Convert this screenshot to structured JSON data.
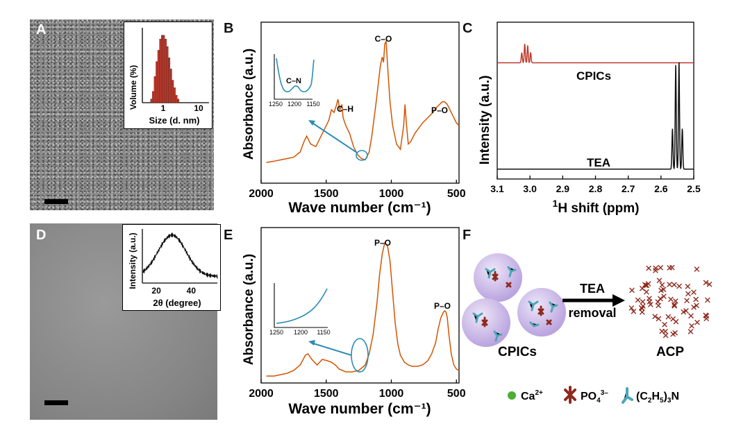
{
  "panel_labels": {
    "a": "A",
    "b": "B",
    "c": "C",
    "d": "D",
    "e": "E",
    "f": "F"
  },
  "inset_a": {
    "ylabel": "Volume (%)",
    "xlabel": "Size (d. nm)",
    "tick_1": "1",
    "tick_10": "10",
    "bars_log_start": 0.5,
    "bars_log_step_factor": 1.12,
    "bar_values": [
      1,
      3,
      7,
      11,
      14,
      17,
      18,
      18,
      17,
      15,
      12,
      9,
      6,
      4,
      2,
      1
    ],
    "ylim": [
      0,
      20
    ],
    "bar_color": "#c0392b"
  },
  "inset_d": {
    "ylabel": "Intensity (a.u.)",
    "xlabel": "2θ (degree)",
    "ticks": [
      "20",
      "40"
    ],
    "xlim": [
      12,
      55
    ],
    "peak_center": 29,
    "peak_width": 8
  },
  "chart_data": [
    {
      "type": "line",
      "panel": "B",
      "xlabel": "Wave number (cm⁻¹)",
      "ylabel": "Absorbance (a.u.)",
      "xlim": [
        2000,
        480
      ],
      "xticks": [
        "2000",
        "1500",
        "1000",
        "500"
      ],
      "xtick_values": [
        2000,
        1500,
        1000,
        500
      ],
      "color": "#d35400",
      "series": [
        {
          "name": "CPICs",
          "x": [
            1960,
            1900,
            1850,
            1800,
            1750,
            1700,
            1670,
            1650,
            1620,
            1580,
            1520,
            1480,
            1460,
            1440,
            1420,
            1410,
            1395,
            1380,
            1370,
            1350,
            1320,
            1290,
            1260,
            1230,
            1200,
            1170,
            1150,
            1120,
            1100,
            1085,
            1070,
            1060,
            1050,
            1040,
            1025,
            1010,
            990,
            960,
            930,
            905,
            895,
            885,
            870,
            850,
            820,
            790,
            760,
            720,
            680,
            650,
            630,
            610,
            590,
            570,
            550,
            530,
            500,
            480
          ],
          "y": [
            0.02,
            0.03,
            0.04,
            0.05,
            0.06,
            0.1,
            0.18,
            0.22,
            0.16,
            0.14,
            0.26,
            0.34,
            0.42,
            0.4,
            0.46,
            0.5,
            0.42,
            0.46,
            0.36,
            0.3,
            0.24,
            0.14,
            0.08,
            0.05,
            0.04,
            0.1,
            0.22,
            0.45,
            0.62,
            0.75,
            0.82,
            0.78,
            0.92,
            0.94,
            0.7,
            0.48,
            0.3,
            0.16,
            0.12,
            0.3,
            0.46,
            0.32,
            0.16,
            0.18,
            0.24,
            0.28,
            0.32,
            0.36,
            0.4,
            0.44,
            0.46,
            0.48,
            0.48,
            0.46,
            0.42,
            0.38,
            0.32,
            0.3
          ]
        }
      ],
      "annotations": [
        "C–O",
        "C–H",
        "P–O"
      ],
      "inset": {
        "label": "C–N",
        "ticks": [
          "1250",
          "1200",
          "1150"
        ]
      }
    },
    {
      "type": "line",
      "panel": "C",
      "xlabel": "H shift (ppm)",
      "xlabel_sup": "1",
      "ylabel": "Intensity (a.u.)",
      "xlim": [
        3.1,
        2.5
      ],
      "xticks": [
        "3.1",
        "3.0",
        "2.9",
        "2.8",
        "2.7",
        "2.6",
        "2.5"
      ],
      "xtick_values": [
        3.1,
        3.0,
        2.9,
        2.8,
        2.7,
        2.6,
        2.5
      ],
      "series": [
        {
          "name": "CPICs",
          "color": "#c0392b",
          "baseline": 0.75,
          "peaks": [
            [
              3.025,
              0.07
            ],
            [
              3.016,
              0.13
            ],
            [
              3.007,
              0.12
            ],
            [
              2.998,
              0.07
            ]
          ]
        },
        {
          "name": "TEA",
          "color": "#111111",
          "baseline": 0.02,
          "peaks": [
            [
              2.565,
              0.28
            ],
            [
              2.555,
              0.72
            ],
            [
              2.545,
              0.74
            ],
            [
              2.535,
              0.28
            ]
          ]
        }
      ]
    },
    {
      "type": "line",
      "panel": "E",
      "xlabel": "Wave number (cm⁻¹)",
      "ylabel": "Absorbance (a.u.)",
      "xlim": [
        2000,
        480
      ],
      "xticks": [
        "2000",
        "1500",
        "1000",
        "500"
      ],
      "xtick_values": [
        2000,
        1500,
        1000,
        500
      ],
      "color": "#d35400",
      "series": [
        {
          "name": "ACP",
          "x": [
            1960,
            1900,
            1850,
            1800,
            1750,
            1700,
            1660,
            1640,
            1610,
            1570,
            1530,
            1490,
            1460,
            1430,
            1400,
            1350,
            1300,
            1250,
            1200,
            1170,
            1140,
            1110,
            1090,
            1070,
            1050,
            1030,
            1010,
            990,
            970,
            950,
            930,
            900,
            870,
            840,
            800,
            760,
            720,
            690,
            660,
            640,
            620,
            600,
            590,
            580,
            570,
            560,
            540,
            520,
            500,
            480
          ],
          "y": [
            0.02,
            0.02,
            0.03,
            0.04,
            0.06,
            0.1,
            0.17,
            0.18,
            0.14,
            0.1,
            0.14,
            0.13,
            0.12,
            0.1,
            0.07,
            0.05,
            0.05,
            0.06,
            0.1,
            0.18,
            0.32,
            0.55,
            0.75,
            0.9,
            0.98,
            0.96,
            0.85,
            0.62,
            0.4,
            0.25,
            0.17,
            0.12,
            0.1,
            0.09,
            0.09,
            0.1,
            0.13,
            0.18,
            0.26,
            0.36,
            0.44,
            0.48,
            0.49,
            0.48,
            0.44,
            0.34,
            0.18,
            0.1,
            0.07,
            0.06
          ]
        }
      ],
      "annotations": [
        "P–O",
        "P–O"
      ],
      "inset": {
        "ticks": [
          "1250",
          "1200",
          "1150"
        ]
      }
    }
  ],
  "scheme_f": {
    "arrow_top": "TEA",
    "arrow_bottom": "removal",
    "left_label": "CPICs",
    "right_label": "ACP",
    "legend_ca": "Ca",
    "legend_ca_sup": "2+",
    "legend_po4": "PO",
    "legend_po4_sub": "4",
    "legend_po4_sup": "3–",
    "legend_tea": "(C",
    "legend_tea_sub1": "2",
    "legend_tea_mid": "H",
    "legend_tea_sub2": "5",
    "legend_tea_end": ")",
    "legend_tea_sub3": "3",
    "legend_tea_n": "N",
    "sphere_color": "#c9b8e8",
    "phosphate_color": "#8e2a1e",
    "tea_color": "#4aa7b8",
    "ca_color": "#4caf32"
  }
}
